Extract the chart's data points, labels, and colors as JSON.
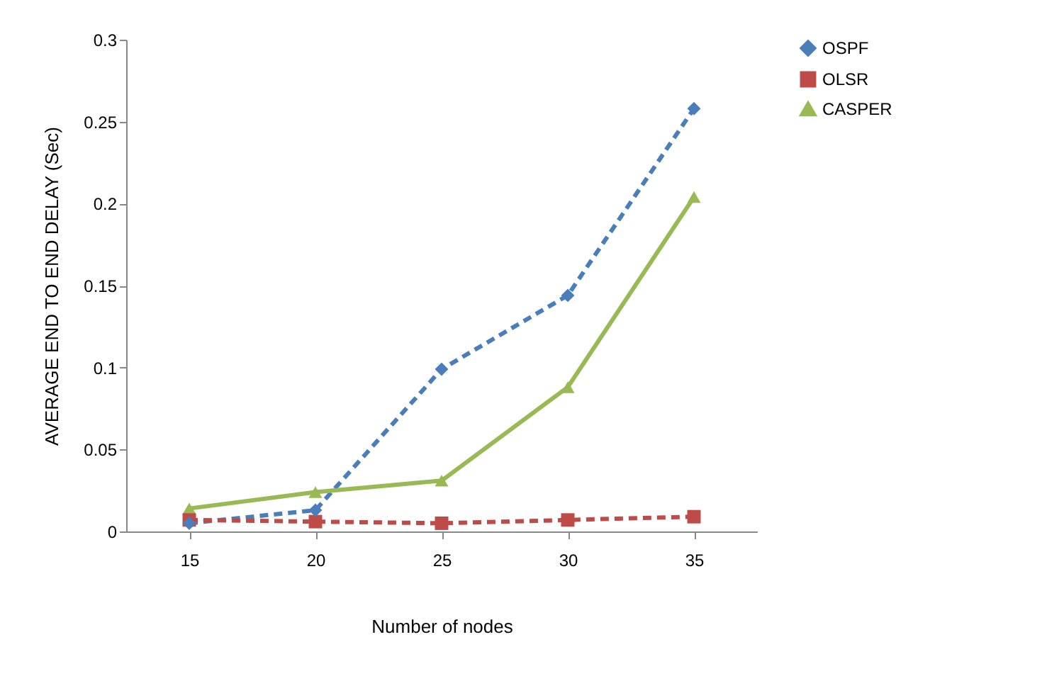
{
  "chart_data": {
    "type": "line",
    "xlabel": "Number of nodes",
    "ylabel": "AVERAGE  END TO END DELAY (Sec)",
    "categories": [
      "15",
      "20",
      "25",
      "30",
      "35"
    ],
    "series": [
      {
        "name": "OSPF",
        "color": "#4a7ebb",
        "marker": "diamond",
        "line_style": "dashed",
        "values": [
          0.005,
          0.013,
          0.099,
          0.144,
          0.258
        ]
      },
      {
        "name": "OLSR",
        "color": "#be4b48",
        "marker": "square",
        "line_style": "dashed",
        "values": [
          0.007,
          0.006,
          0.005,
          0.007,
          0.009
        ]
      },
      {
        "name": "CASPER",
        "color": "#98b954",
        "marker": "triangle",
        "line_style": "solid",
        "values": [
          0.014,
          0.024,
          0.031,
          0.088,
          0.204
        ]
      }
    ],
    "ylim": [
      0,
      0.3
    ],
    "yticks": [
      0,
      0.05,
      0.1,
      0.15,
      0.2,
      0.25,
      0.3
    ],
    "grid": false,
    "legend": "right"
  }
}
